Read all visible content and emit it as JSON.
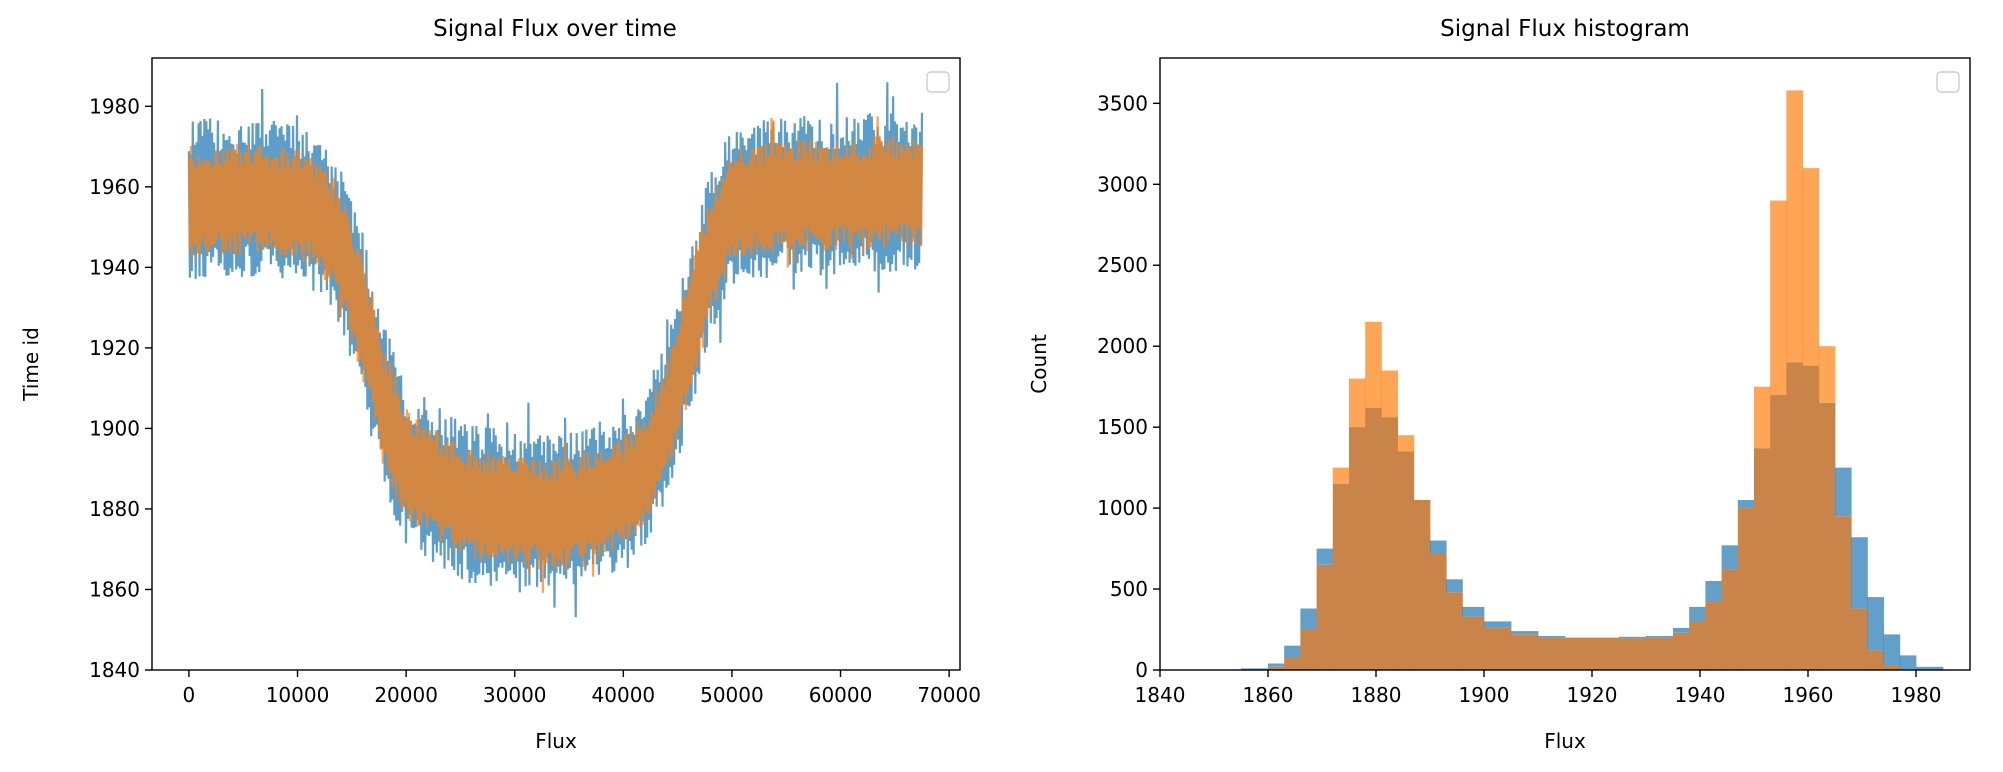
{
  "colors": {
    "series1": "#1f77b4",
    "series2": "#ff7f0e",
    "overlap": "#c88449"
  },
  "chart_data": [
    {
      "type": "line",
      "title": "Signal Flux over time",
      "xlabel": "Flux",
      "ylabel": "Time id",
      "xlim": [
        -3400,
        71000
      ],
      "ylim": [
        1840,
        1992
      ],
      "xticks": [
        0,
        10000,
        20000,
        30000,
        40000,
        50000,
        60000,
        70000
      ],
      "yticks": [
        1840,
        1860,
        1880,
        1900,
        1920,
        1940,
        1960,
        1980
      ],
      "legend": "top-right (empty)",
      "grid": false,
      "x": [
        0,
        5000,
        10000,
        12000,
        14000,
        16000,
        18000,
        20000,
        25000,
        30000,
        35000,
        40000,
        42000,
        44000,
        46000,
        48000,
        50000,
        55000,
        60000,
        65000,
        67500
      ],
      "series": [
        {
          "center": [
            1957,
            1957,
            1956,
            1953,
            1945,
            1928,
            1905,
            1891,
            1882,
            1879,
            1879,
            1884,
            1890,
            1902,
            1922,
            1943,
            1955,
            1958,
            1958,
            1959,
            1959
          ],
          "halfwidth": [
            20,
            20,
            20,
            20,
            20,
            21,
            21,
            20,
            20,
            20,
            20,
            20,
            20,
            20,
            21,
            21,
            20,
            20,
            20,
            20,
            20
          ]
        },
        {
          "center": [
            1957,
            1957,
            1956,
            1953,
            1945,
            1928,
            1905,
            1891,
            1882,
            1879,
            1879,
            1884,
            1890,
            1902,
            1922,
            1943,
            1955,
            1958,
            1958,
            1959,
            1959
          ],
          "halfwidth": [
            14,
            14,
            14,
            14,
            15,
            16,
            16,
            15,
            14,
            14,
            14,
            14,
            14,
            15,
            16,
            16,
            14,
            14,
            14,
            14,
            14
          ]
        }
      ]
    },
    {
      "type": "bar",
      "title": "Signal Flux histogram",
      "xlabel": "Flux",
      "ylabel": "Count",
      "xlim": [
        1840,
        1990
      ],
      "ylim": [
        0,
        3780
      ],
      "xticks": [
        1840,
        1860,
        1880,
        1900,
        1920,
        1940,
        1960,
        1980
      ],
      "yticks": [
        0,
        500,
        1000,
        1500,
        2000,
        2500,
        3000,
        3500
      ],
      "legend": "top-right (empty)",
      "grid": false,
      "bin_edges": [
        1855,
        1860,
        1863,
        1866,
        1869,
        1872,
        1875,
        1878,
        1881,
        1884,
        1887,
        1890,
        1893,
        1896,
        1900,
        1905,
        1910,
        1915,
        1920,
        1925,
        1930,
        1935,
        1938,
        1941,
        1944,
        1947,
        1950,
        1953,
        1956,
        1959,
        1962,
        1965,
        1968,
        1971,
        1974,
        1977,
        1980,
        1985
      ],
      "series": [
        {
          "values": [
            10,
            40,
            150,
            380,
            750,
            1150,
            1500,
            1620,
            1560,
            1350,
            1050,
            800,
            560,
            390,
            300,
            240,
            210,
            200,
            200,
            205,
            210,
            260,
            390,
            550,
            770,
            1050,
            1370,
            1700,
            1900,
            1880,
            1650,
            1250,
            820,
            450,
            220,
            90,
            20
          ]
        },
        {
          "values": [
            0,
            20,
            80,
            250,
            650,
            1250,
            1800,
            2150,
            1850,
            1450,
            1050,
            720,
            480,
            330,
            260,
            220,
            200,
            200,
            200,
            195,
            200,
            230,
            300,
            420,
            620,
            1000,
            1750,
            2900,
            3580,
            3100,
            2000,
            950,
            380,
            120,
            30,
            5,
            0
          ]
        }
      ]
    }
  ]
}
